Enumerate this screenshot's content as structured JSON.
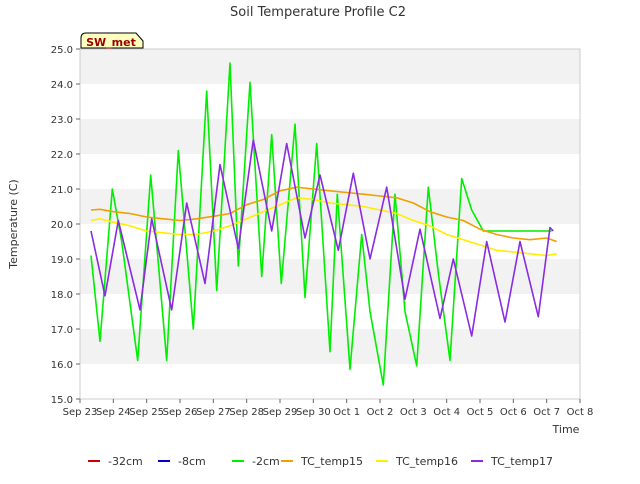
{
  "chart_data": {
    "type": "line",
    "title": "Soil Temperature Profile C2",
    "xlabel": "Time",
    "ylabel": "Temperature (C)",
    "station_label": "SW_met",
    "ylim": [
      15.0,
      25.0
    ],
    "yticks": [
      "15.0",
      "16.0",
      "17.0",
      "18.0",
      "19.0",
      "20.0",
      "21.0",
      "22.0",
      "23.0",
      "24.0",
      "25.0"
    ],
    "xlim": [
      0,
      15
    ],
    "xticks": [
      "Sep 23",
      "Sep 24",
      "Sep 25",
      "Sep 26",
      "Sep 27",
      "Sep 28",
      "Sep 29",
      "Sep 30",
      "Oct 1",
      "Oct 2",
      "Oct 3",
      "Oct 4",
      "Oct 5",
      "Oct 6",
      "Oct 7",
      "Oct 8"
    ],
    "grid": "horizontal bands",
    "legend_position": "bottom",
    "series": [
      {
        "name": "-32cm",
        "color": "#cc0000",
        "x": [],
        "y": []
      },
      {
        "name": "-8cm",
        "color": "#0000cc",
        "x": [],
        "y": []
      },
      {
        "name": "-2cm",
        "color": "#00ee00",
        "x": [
          0.33,
          0.6,
          0.97,
          1.25,
          1.73,
          2.12,
          2.6,
          2.95,
          3.4,
          3.8,
          4.1,
          4.5,
          4.75,
          5.1,
          5.45,
          5.75,
          6.04,
          6.45,
          6.75,
          7.1,
          7.5,
          7.72,
          8.1,
          8.45,
          8.7,
          9.1,
          9.45,
          9.75,
          10.1,
          10.45,
          10.75,
          11.1,
          11.45,
          11.75,
          12.1,
          12.45,
          12.75,
          13.1,
          13.45,
          13.72,
          14.0,
          14.15
        ],
        "y": [
          19.1,
          16.65,
          21.0,
          19.5,
          16.1,
          21.4,
          16.1,
          22.1,
          17.0,
          23.8,
          18.1,
          24.6,
          18.8,
          24.05,
          18.5,
          22.55,
          18.3,
          22.85,
          17.9,
          22.3,
          16.35,
          20.85,
          15.85,
          19.7,
          17.5,
          15.4,
          20.85,
          17.5,
          15.95,
          21.05,
          18.6,
          16.1,
          21.3,
          20.4,
          19.8,
          19.8,
          19.8,
          19.8,
          19.8,
          19.8,
          19.8,
          19.8
        ]
      },
      {
        "name": "TC_temp15",
        "color": "#f0a000",
        "x": [
          0.33,
          0.6,
          1.0,
          1.5,
          2.0,
          2.5,
          3.0,
          3.5,
          4.0,
          4.5,
          5.0,
          5.5,
          6.0,
          6.5,
          7.0,
          7.5,
          8.0,
          8.5,
          9.0,
          9.5,
          10.0,
          10.5,
          11.0,
          11.5,
          12.0,
          12.5,
          13.0,
          13.5,
          14.0,
          14.3
        ],
        "y": [
          20.4,
          20.42,
          20.35,
          20.3,
          20.2,
          20.15,
          20.1,
          20.15,
          20.22,
          20.3,
          20.55,
          20.7,
          20.95,
          21.05,
          21.0,
          20.95,
          20.9,
          20.85,
          20.8,
          20.75,
          20.6,
          20.35,
          20.2,
          20.1,
          19.85,
          19.7,
          19.6,
          19.55,
          19.6,
          19.5
        ]
      },
      {
        "name": "TC_temp16",
        "color": "#ffee00",
        "x": [
          0.33,
          0.6,
          1.0,
          1.5,
          2.0,
          2.5,
          3.0,
          3.5,
          4.0,
          4.5,
          5.0,
          5.5,
          6.0,
          6.5,
          7.0,
          7.5,
          8.0,
          8.5,
          9.0,
          9.5,
          10.0,
          10.5,
          11.0,
          11.5,
          12.0,
          12.5,
          13.0,
          13.5,
          14.0,
          14.3
        ],
        "y": [
          20.1,
          20.15,
          20.05,
          19.95,
          19.8,
          19.75,
          19.7,
          19.7,
          19.8,
          19.95,
          20.15,
          20.35,
          20.55,
          20.75,
          20.7,
          20.6,
          20.55,
          20.5,
          20.4,
          20.3,
          20.1,
          19.95,
          19.7,
          19.55,
          19.4,
          19.25,
          19.2,
          19.15,
          19.1,
          19.15
        ]
      },
      {
        "name": "TC_temp17",
        "color": "#8a2be2",
        "x": [
          0.33,
          0.75,
          1.15,
          1.8,
          2.15,
          2.75,
          3.2,
          3.75,
          4.2,
          4.75,
          5.2,
          5.75,
          6.2,
          6.75,
          7.2,
          7.75,
          8.2,
          8.7,
          9.2,
          9.75,
          10.2,
          10.8,
          11.2,
          11.75,
          12.2,
          12.75,
          13.2,
          13.75,
          14.1,
          14.2
        ],
        "y": [
          19.8,
          17.95,
          20.1,
          17.55,
          20.15,
          17.55,
          20.6,
          18.3,
          21.7,
          19.3,
          22.4,
          19.8,
          22.3,
          19.6,
          21.4,
          19.25,
          21.45,
          19.0,
          21.05,
          17.85,
          19.85,
          17.3,
          19.0,
          16.8,
          19.5,
          17.2,
          19.5,
          17.35,
          19.9,
          19.8
        ]
      }
    ]
  }
}
